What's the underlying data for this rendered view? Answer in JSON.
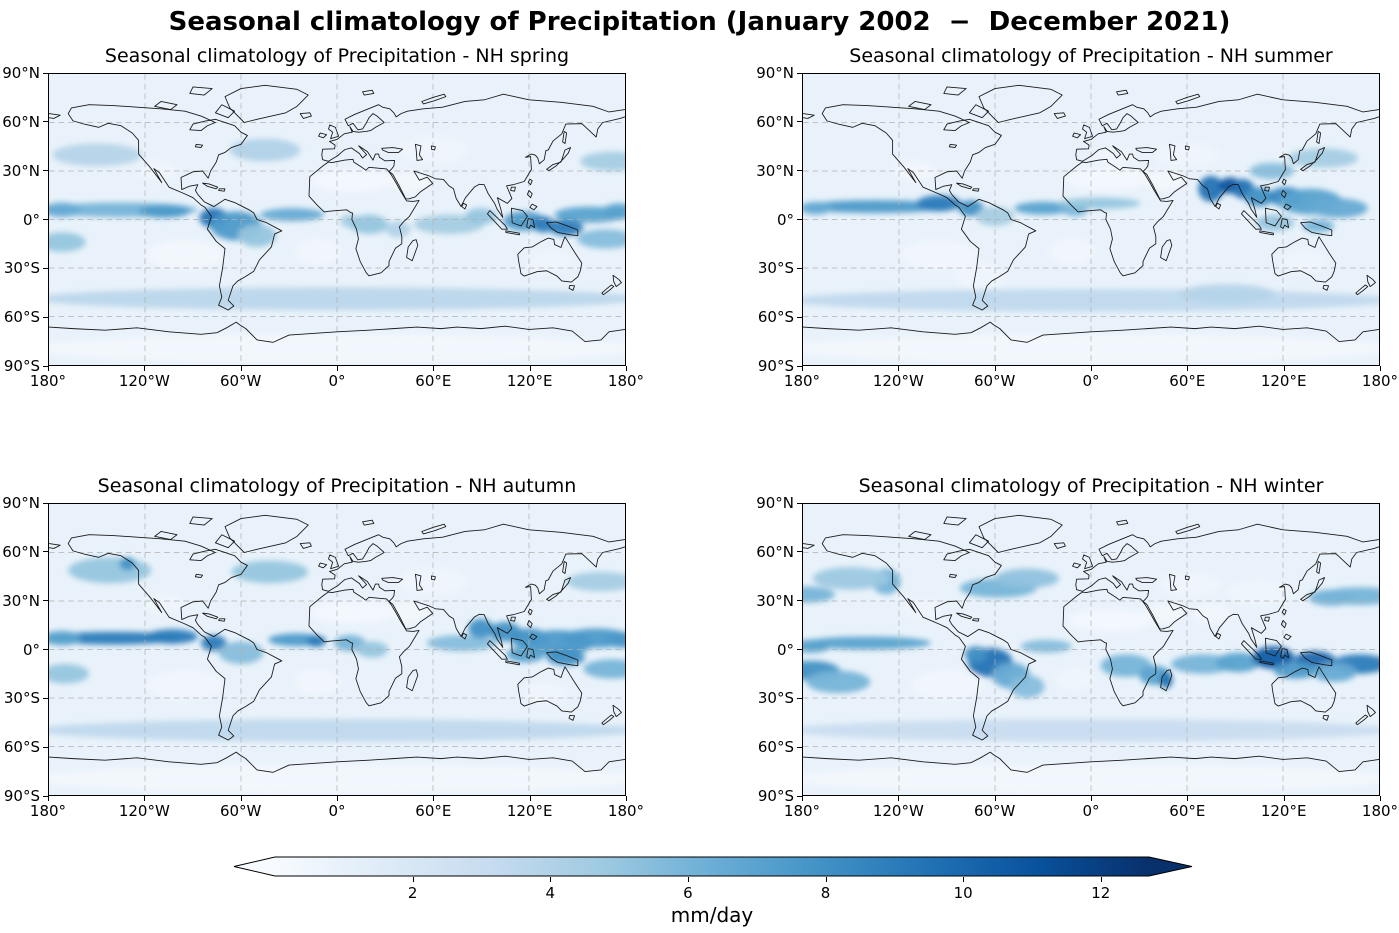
{
  "figure": {
    "title": "Seasonal climatology of Precipitation (January 2002  −  December 2021)"
  },
  "axes": {
    "lat_ticks": [
      {
        "label": "90°N",
        "lat": 90
      },
      {
        "label": "60°N",
        "lat": 60
      },
      {
        "label": "30°N",
        "lat": 30
      },
      {
        "label": "0°",
        "lat": 0
      },
      {
        "label": "30°S",
        "lat": -30
      },
      {
        "label": "60°S",
        "lat": -60
      },
      {
        "label": "90°S",
        "lat": -90
      }
    ],
    "lon_ticks": [
      {
        "label": "180°",
        "lon": -180
      },
      {
        "label": "120°W",
        "lon": -120
      },
      {
        "label": "60°W",
        "lon": -60
      },
      {
        "label": "0°",
        "lon": 0
      },
      {
        "label": "60°E",
        "lon": 60
      },
      {
        "label": "120°E",
        "lon": 120
      },
      {
        "label": "180°",
        "lon": 180
      }
    ],
    "grid_lons": [
      -120,
      -60,
      0,
      60,
      120
    ],
    "grid_lats": [
      -60,
      -30,
      0,
      30,
      60
    ]
  },
  "colorbar": {
    "label": "mm/day",
    "ticks": [
      2,
      4,
      6,
      8,
      10,
      12
    ],
    "vmin": 0,
    "vmax": 12.7,
    "extend": "both",
    "colormap": "Blues"
  },
  "chart_data": {
    "type": "heatmap",
    "projection": "equirectangular (PlateCarree)",
    "lon_range": [
      -180,
      180
    ],
    "lat_range": [
      -90,
      90
    ],
    "units": "mm/day",
    "colors": {
      "blues_anchors": [
        "#f7fbff",
        "#deebf7",
        "#c6dbef",
        "#9ecae1",
        "#6baed6",
        "#4292c6",
        "#2171b5",
        "#08519c",
        "#08306b"
      ],
      "ocean_base": "#e9f2fa",
      "coastline": "#1a1a1a",
      "gridline": "#b0b0b0"
    },
    "subplots": [
      {
        "season": "NH spring",
        "title": "Seasonal climatology of Precipitation - NH spring",
        "features": [
          [
            -135,
            6,
            48,
            4.5,
            6
          ],
          [
            -108,
            5,
            16,
            4,
            7.5
          ],
          [
            -172,
            6,
            12,
            4.5,
            6.5
          ],
          [
            -77,
            1,
            9,
            6,
            9.5
          ],
          [
            -63,
            -4,
            16,
            9,
            7.5
          ],
          [
            -50,
            -10,
            12,
            7,
            5
          ],
          [
            -28,
            3,
            20,
            4,
            6.5
          ],
          [
            8,
            -1,
            6,
            4,
            4.5
          ],
          [
            20,
            -3,
            12,
            6,
            5
          ],
          [
            38,
            -6,
            8,
            5,
            4
          ],
          [
            70,
            -3,
            22,
            6,
            4.5
          ],
          [
            90,
            2,
            10,
            5,
            5
          ],
          [
            117,
            -1,
            13,
            6,
            7.5
          ],
          [
            129,
            -3,
            7,
            5,
            9
          ],
          [
            143,
            -5,
            11,
            5,
            9
          ],
          [
            158,
            3,
            22,
            5,
            7
          ],
          [
            176,
            5,
            10,
            5,
            7
          ],
          [
            168,
            -12,
            18,
            6,
            5.5
          ],
          [
            -172,
            -14,
            15,
            6,
            5
          ],
          [
            -150,
            40,
            28,
            7,
            3.8
          ],
          [
            172,
            36,
            20,
            6,
            4.5
          ],
          [
            -45,
            43,
            22,
            7,
            4
          ],
          [
            0,
            -49,
            190,
            7,
            3.6
          ],
          [
            10,
            24,
            26,
            7,
            0.25
          ],
          [
            45,
            23,
            12,
            6,
            0.3
          ],
          [
            -112,
            30,
            12,
            6,
            0.5
          ],
          [
            -95,
            -22,
            24,
            9,
            0.3
          ],
          [
            -12,
            -20,
            14,
            8,
            0.4
          ],
          [
            60,
            43,
            22,
            9,
            0.6
          ],
          [
            133,
            -26,
            14,
            7,
            0.6
          ],
          [
            0,
            -80,
            190,
            9,
            0.3
          ]
        ]
      },
      {
        "season": "NH summer",
        "title": "Seasonal climatology of Precipitation - NH summer",
        "features": [
          [
            -135,
            8,
            46,
            4,
            7.5
          ],
          [
            -95,
            10,
            14,
            5,
            9
          ],
          [
            -172,
            7,
            10,
            4,
            6.5
          ],
          [
            -75,
            7,
            8,
            5,
            8
          ],
          [
            -60,
            2,
            12,
            6,
            4.5
          ],
          [
            -30,
            7,
            18,
            4,
            7
          ],
          [
            -10,
            6,
            8,
            4,
            6
          ],
          [
            5,
            10,
            26,
            3.5,
            5
          ],
          [
            75,
            19,
            8,
            8,
            9.5
          ],
          [
            87,
            21,
            7,
            5,
            11
          ],
          [
            95,
            19,
            7,
            6,
            9.5
          ],
          [
            105,
            14,
            9,
            6,
            8
          ],
          [
            122,
            14,
            11,
            6,
            8.5
          ],
          [
            137,
            11,
            20,
            8,
            7
          ],
          [
            155,
            7,
            18,
            6,
            6.5
          ],
          [
            115,
            -2,
            12,
            5,
            5
          ],
          [
            142,
            -4,
            10,
            4,
            6
          ],
          [
            113,
            30,
            14,
            5,
            5.5
          ],
          [
            145,
            38,
            22,
            6,
            4.5
          ],
          [
            0,
            -50,
            190,
            7,
            3.4
          ],
          [
            85,
            -46,
            30,
            6,
            3.8
          ],
          [
            10,
            25,
            26,
            7,
            0.25
          ],
          [
            45,
            24,
            12,
            6,
            0.3
          ],
          [
            -110,
            30,
            13,
            6,
            0.4
          ],
          [
            15,
            38,
            14,
            5,
            0.5
          ],
          [
            -95,
            -22,
            24,
            9,
            0.35
          ],
          [
            -12,
            -20,
            14,
            8,
            0.4
          ],
          [
            60,
            40,
            20,
            8,
            0.6
          ],
          [
            133,
            -26,
            14,
            7,
            0.5
          ],
          [
            0,
            -80,
            190,
            9,
            0.3
          ],
          [
            -70,
            -35,
            15,
            8,
            0.5
          ]
        ]
      },
      {
        "season": "NH autumn",
        "title": "Seasonal climatology of Precipitation - NH autumn",
        "features": [
          [
            -140,
            7,
            42,
            4,
            9
          ],
          [
            -103,
            8,
            16,
            4.5,
            9
          ],
          [
            -172,
            7,
            12,
            4.5,
            7
          ],
          [
            -77,
            4,
            8,
            5,
            9
          ],
          [
            -60,
            -2,
            14,
            7,
            5.5
          ],
          [
            -25,
            6,
            18,
            4,
            7.5
          ],
          [
            -13,
            5,
            6,
            3.5,
            9
          ],
          [
            8,
            4,
            10,
            5,
            6
          ],
          [
            22,
            0,
            10,
            5,
            5
          ],
          [
            78,
            4,
            22,
            5,
            5.5
          ],
          [
            90,
            13,
            8,
            6,
            8
          ],
          [
            105,
            11,
            10,
            6,
            8
          ],
          [
            120,
            7,
            12,
            6,
            8
          ],
          [
            138,
            4,
            22,
            8,
            7.5
          ],
          [
            162,
            7,
            22,
            6,
            7.5
          ],
          [
            178,
            6,
            10,
            5,
            7.5
          ],
          [
            118,
            -3,
            12,
            5,
            7
          ],
          [
            143,
            -5,
            12,
            5,
            8
          ],
          [
            172,
            -12,
            18,
            6,
            6
          ],
          [
            -170,
            -15,
            15,
            6,
            5
          ],
          [
            -142,
            49,
            26,
            8,
            5
          ],
          [
            -131,
            53,
            5,
            4,
            8
          ],
          [
            -42,
            48,
            24,
            7,
            5
          ],
          [
            165,
            42,
            22,
            6,
            4.5
          ],
          [
            0,
            -50,
            190,
            7,
            3.4
          ],
          [
            10,
            23,
            26,
            7,
            0.25
          ],
          [
            45,
            23,
            12,
            6,
            0.3
          ],
          [
            -108,
            28,
            12,
            6,
            0.5
          ],
          [
            -95,
            -22,
            24,
            9,
            0.35
          ],
          [
            -12,
            -20,
            14,
            8,
            0.4
          ],
          [
            60,
            42,
            22,
            9,
            0.6
          ],
          [
            130,
            -27,
            13,
            6,
            0.5
          ],
          [
            0,
            -80,
            190,
            9,
            0.3
          ]
        ]
      },
      {
        "season": "NH winter",
        "title": "Seasonal climatology of Precipitation - NH winter",
        "features": [
          [
            -140,
            4,
            40,
            4,
            7
          ],
          [
            -175,
            2,
            12,
            4,
            7
          ],
          [
            168,
            -9,
            18,
            6,
            9
          ],
          [
            -175,
            -13,
            18,
            6,
            8
          ],
          [
            -158,
            -20,
            20,
            7,
            6
          ],
          [
            -63,
            -8,
            14,
            9,
            9.5
          ],
          [
            -72,
            -3,
            7,
            5,
            8
          ],
          [
            -50,
            -16,
            12,
            8,
            6.5
          ],
          [
            -40,
            -23,
            11,
            7,
            5.5
          ],
          [
            -28,
            2,
            16,
            4,
            5.5
          ],
          [
            22,
            -10,
            16,
            7,
            6
          ],
          [
            40,
            -16,
            10,
            6,
            7
          ],
          [
            47,
            -19,
            4,
            5,
            9.5
          ],
          [
            70,
            -9,
            20,
            6,
            6
          ],
          [
            92,
            -8,
            14,
            6,
            7
          ],
          [
            114,
            -5,
            13,
            7,
            10.5
          ],
          [
            140,
            -7,
            13,
            6,
            10
          ],
          [
            128,
            -13,
            14,
            5,
            7.5
          ],
          [
            152,
            -14,
            14,
            6,
            6.5
          ],
          [
            -178,
            34,
            18,
            5,
            6
          ],
          [
            168,
            33,
            25,
            5.5,
            6
          ],
          [
            150,
            32,
            14,
            5,
            6
          ],
          [
            -58,
            38,
            24,
            6,
            6
          ],
          [
            -40,
            44,
            20,
            6,
            5.2
          ],
          [
            -128,
            42,
            9,
            8,
            6
          ],
          [
            -150,
            44,
            24,
            7,
            4.8
          ],
          [
            0,
            -50,
            190,
            7,
            3
          ],
          [
            12,
            18,
            26,
            7,
            0.25
          ],
          [
            45,
            22,
            12,
            6,
            0.3
          ],
          [
            75,
            22,
            12,
            6,
            0.4
          ],
          [
            -105,
            25,
            13,
            6,
            0.5
          ],
          [
            -90,
            -22,
            22,
            9,
            0.4
          ],
          [
            -10,
            -18,
            12,
            7,
            0.5
          ],
          [
            62,
            40,
            20,
            8,
            0.6
          ],
          [
            105,
            35,
            20,
            8,
            0.5
          ],
          [
            0,
            -80,
            190,
            9,
            0.3
          ]
        ]
      }
    ]
  }
}
